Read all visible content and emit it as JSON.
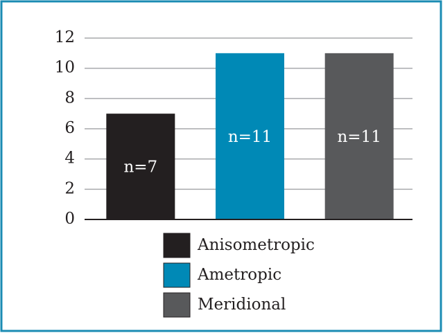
{
  "chart_data": {
    "type": "bar",
    "categories": [
      "Anisometropic",
      "Ametropic",
      "Meridional"
    ],
    "values": [
      7,
      11,
      11
    ],
    "value_labels": [
      "n=7",
      "n=11",
      "n=11"
    ],
    "colors": [
      "#231f20",
      "#0089b6",
      "#58595b"
    ],
    "ylim": [
      0,
      12
    ],
    "yticks": [
      0,
      2,
      4,
      6,
      8,
      10,
      12
    ],
    "grid": true,
    "legend": "bottom"
  }
}
